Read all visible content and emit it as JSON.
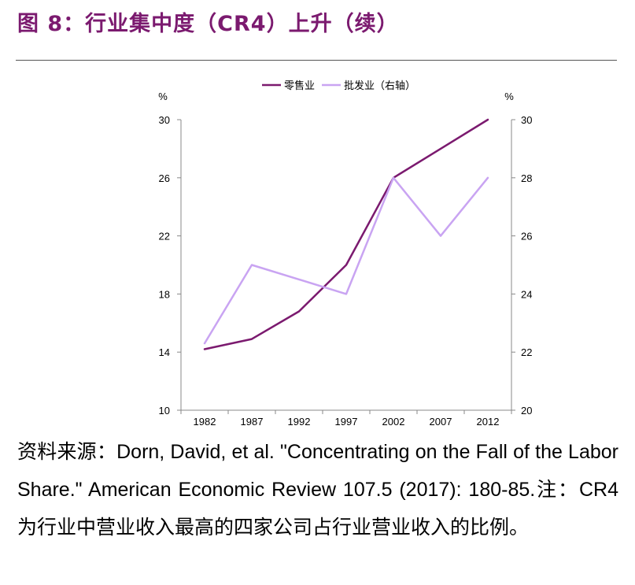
{
  "figure": {
    "title": "图 8：行业集中度（CR4）上升（续）"
  },
  "chart_data": {
    "type": "line",
    "categories": [
      "1982",
      "1987",
      "1992",
      "1997",
      "2002",
      "2007",
      "2012"
    ],
    "series": [
      {
        "name": "零售业",
        "axis": "left",
        "color": "#7b1a6f",
        "values": [
          14.2,
          14.9,
          16.8,
          20.0,
          26.0,
          28.0,
          30.0
        ]
      },
      {
        "name": "批发业（右轴）",
        "axis": "right",
        "color": "#c9a4f2",
        "values": [
          22.3,
          25.0,
          24.5,
          24.0,
          28.0,
          26.0,
          28.0
        ]
      }
    ],
    "y_left": {
      "unit": "%",
      "range": [
        10,
        30
      ],
      "ticks": [
        10,
        14,
        18,
        22,
        26,
        30
      ]
    },
    "y_right": {
      "unit": "%",
      "range": [
        20,
        30
      ],
      "ticks": [
        20,
        22,
        24,
        26,
        28,
        30
      ]
    },
    "legend_position": "top-center",
    "grid": false
  },
  "caption": {
    "source_label": "资料来源：",
    "source_text": "Dorn, David, et al. \"Concentrating on the Fall of the Labor Share.\" American Economic Review 107.5 (2017): 180-85.",
    "note_label": "注：",
    "note_term": "CR4",
    "note_text": "为行业中营业收入最高的四家公司占行业营业收入的比例。"
  }
}
